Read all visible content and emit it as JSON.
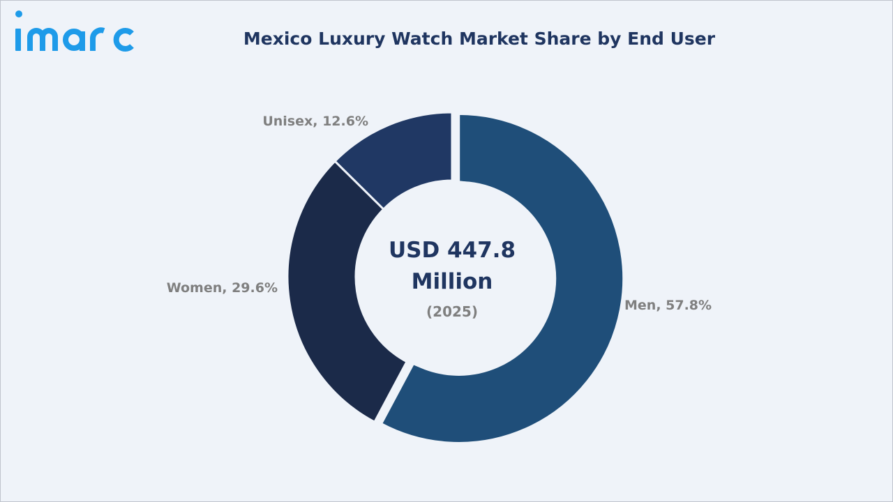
{
  "brand": {
    "name": "imarc",
    "color": "#1e9be9"
  },
  "header": {
    "title": "Mexico Luxury Watch Market Share by End User"
  },
  "center": {
    "value_line1": "USD 447.8",
    "value_line2": "Million",
    "year": "(2025)"
  },
  "chart_data": {
    "type": "pie",
    "variant": "donut",
    "title": "Mexico Luxury Watch Market Share by End User",
    "unit": "%",
    "categories": [
      "Men",
      "Women",
      "Unisex"
    ],
    "values": [
      57.8,
      29.6,
      12.6
    ],
    "labels": [
      "Men, 57.8%",
      "Women, 29.6%",
      "Unisex, 12.6%"
    ],
    "colors": [
      "#1f4e79",
      "#1b2a49",
      "#203864"
    ],
    "start": "12 o'clock, clockwise",
    "exploded": "Men",
    "legend": "none",
    "data_labels": "outside"
  }
}
